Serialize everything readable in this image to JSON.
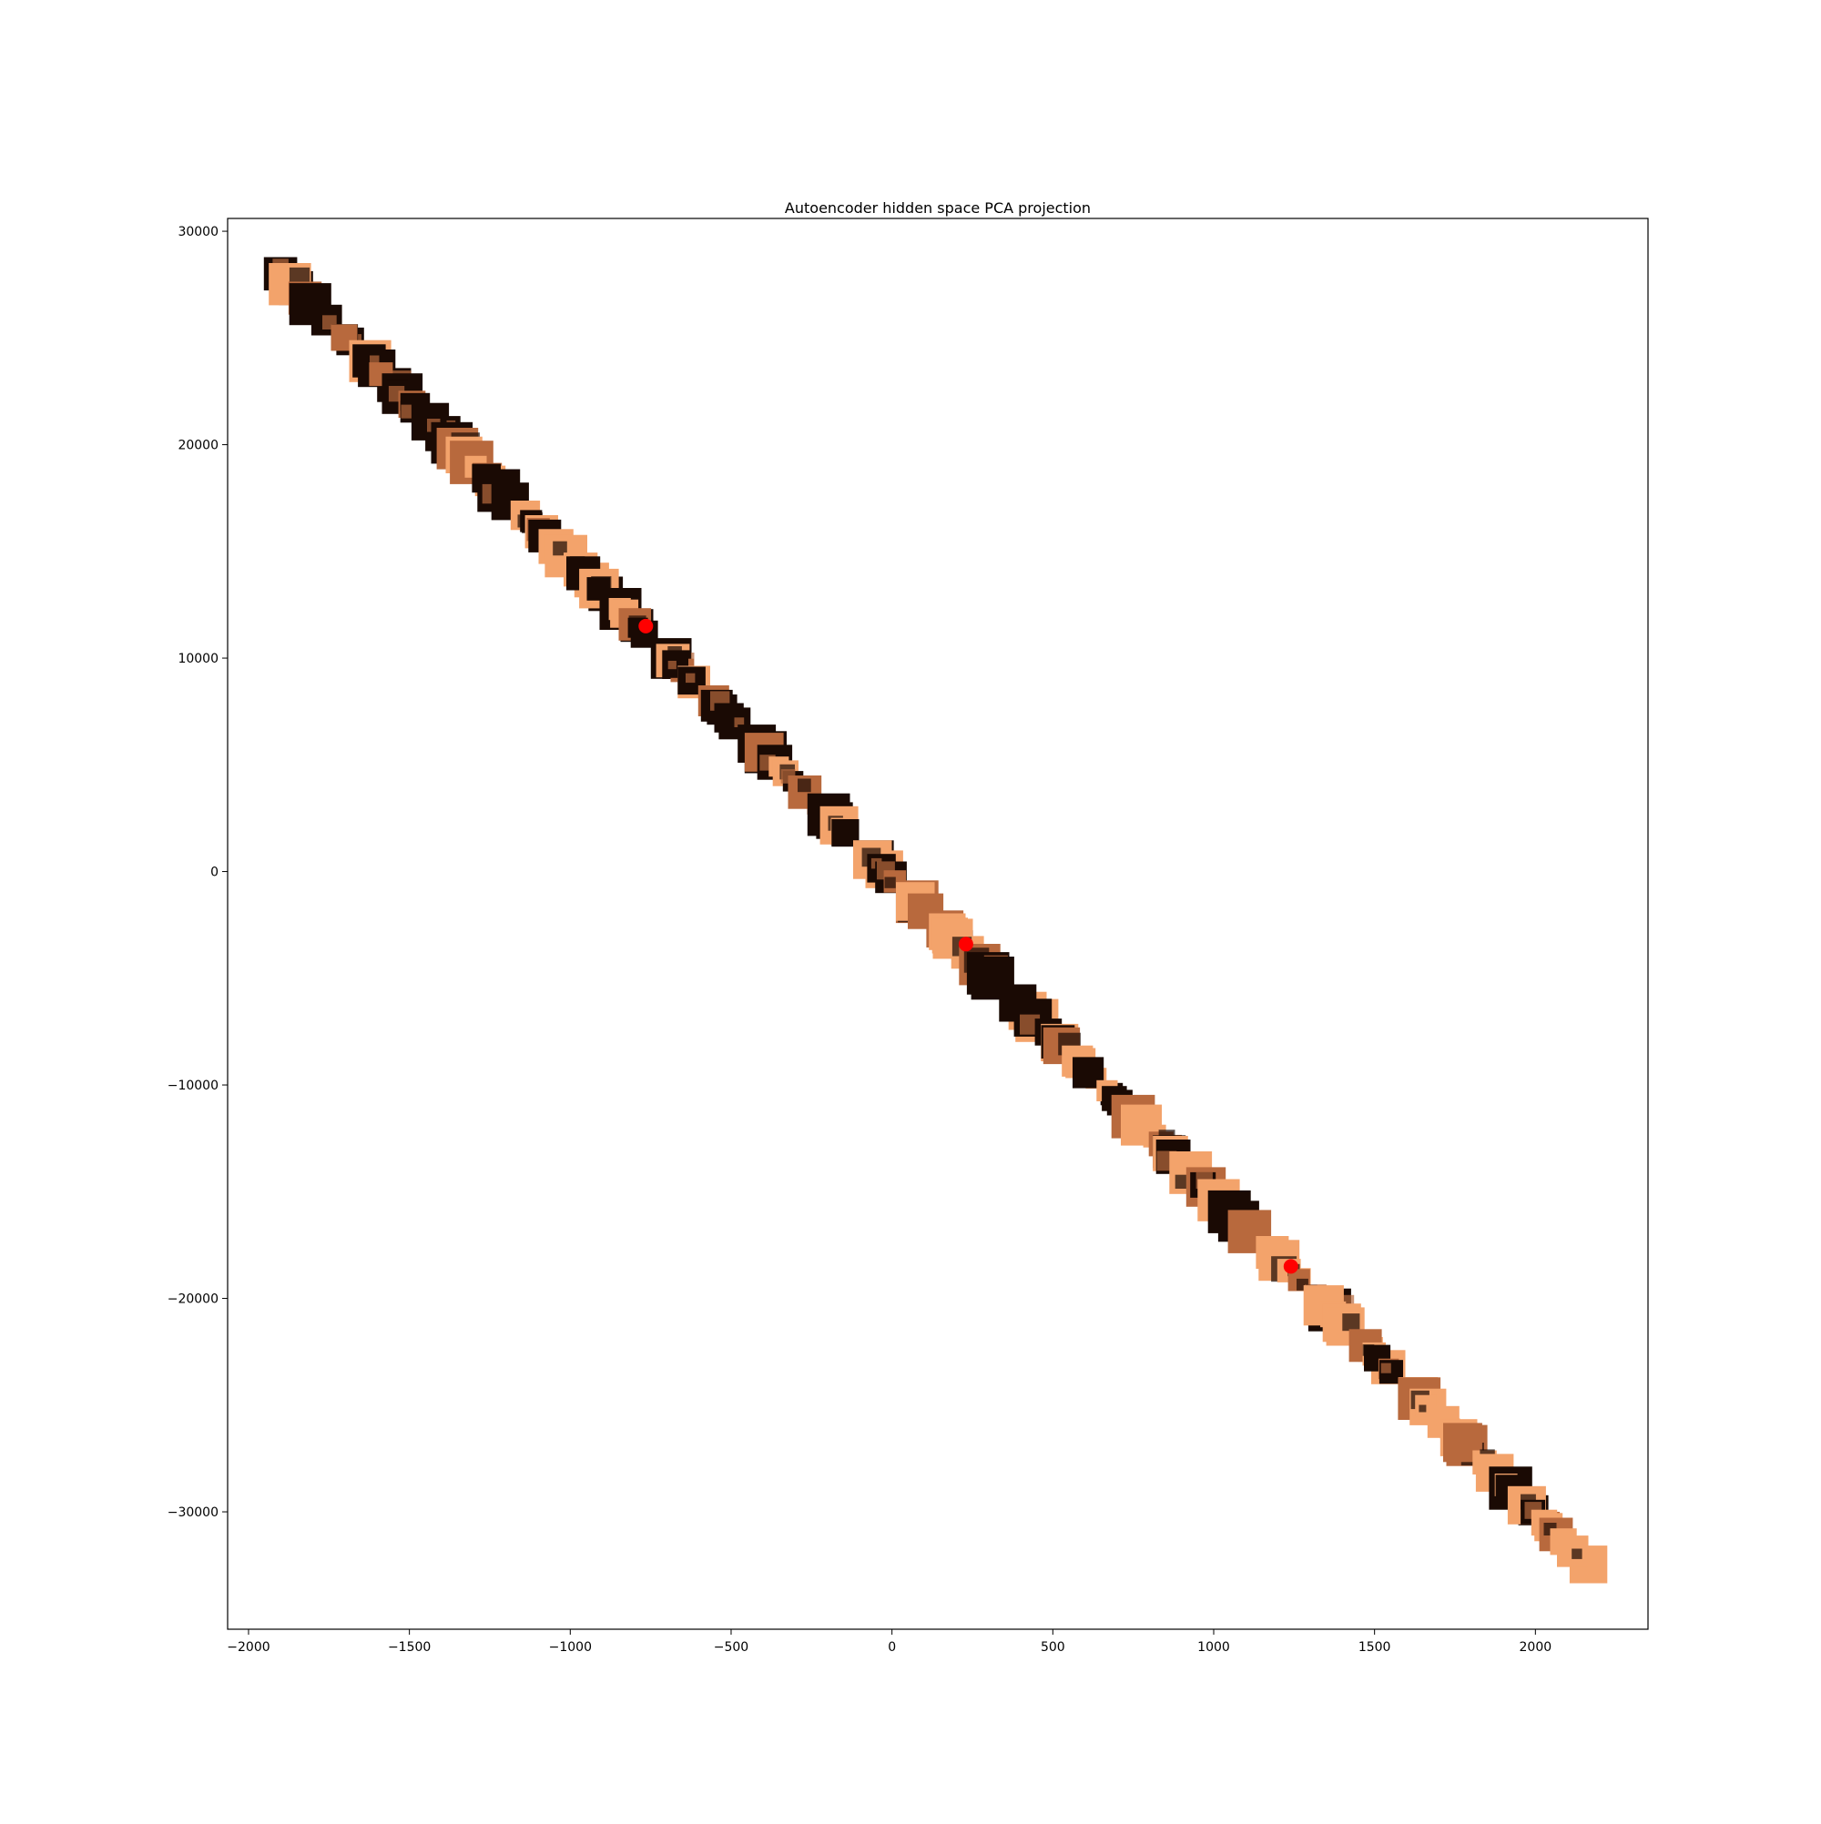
{
  "chart_data": {
    "type": "scatter",
    "title": "Autoencoder hidden space PCA projection",
    "xlabel": "",
    "ylabel": "",
    "xlim": [
      -2065,
      2350
    ],
    "ylim": [
      -35500,
      30600
    ],
    "xticks": [
      -2000,
      -1500,
      -1000,
      -500,
      0,
      500,
      1000,
      1500,
      2000
    ],
    "yticks": [
      -30000,
      -20000,
      -10000,
      0,
      10000,
      20000,
      30000
    ],
    "xtick_labels": [
      "−2000",
      "−1500",
      "−1000",
      "−500",
      "0",
      "500",
      "1000",
      "1500",
      "2000"
    ],
    "ytick_labels": [
      "−30000",
      "−20000",
      "−10000",
      "0",
      "10000",
      "20000",
      "30000"
    ],
    "grid": false,
    "legend": null,
    "colors": {
      "tile_light": "#f3a36b",
      "tile_mid": "#b8693d",
      "tile_dark": "#1a0a04",
      "highlight_point": "#ff0000"
    },
    "image_band": {
      "description_kind": "thumbnail tiles (copper colormap) placed along the projection",
      "start": [
        -1900,
        28000
      ],
      "end": [
        2150,
        -32300
      ]
    },
    "highlighted_points": [
      {
        "x": -765,
        "y": 11500
      },
      {
        "x": 230,
        "y": -3400
      },
      {
        "x": 1240,
        "y": -18500
      }
    ]
  }
}
